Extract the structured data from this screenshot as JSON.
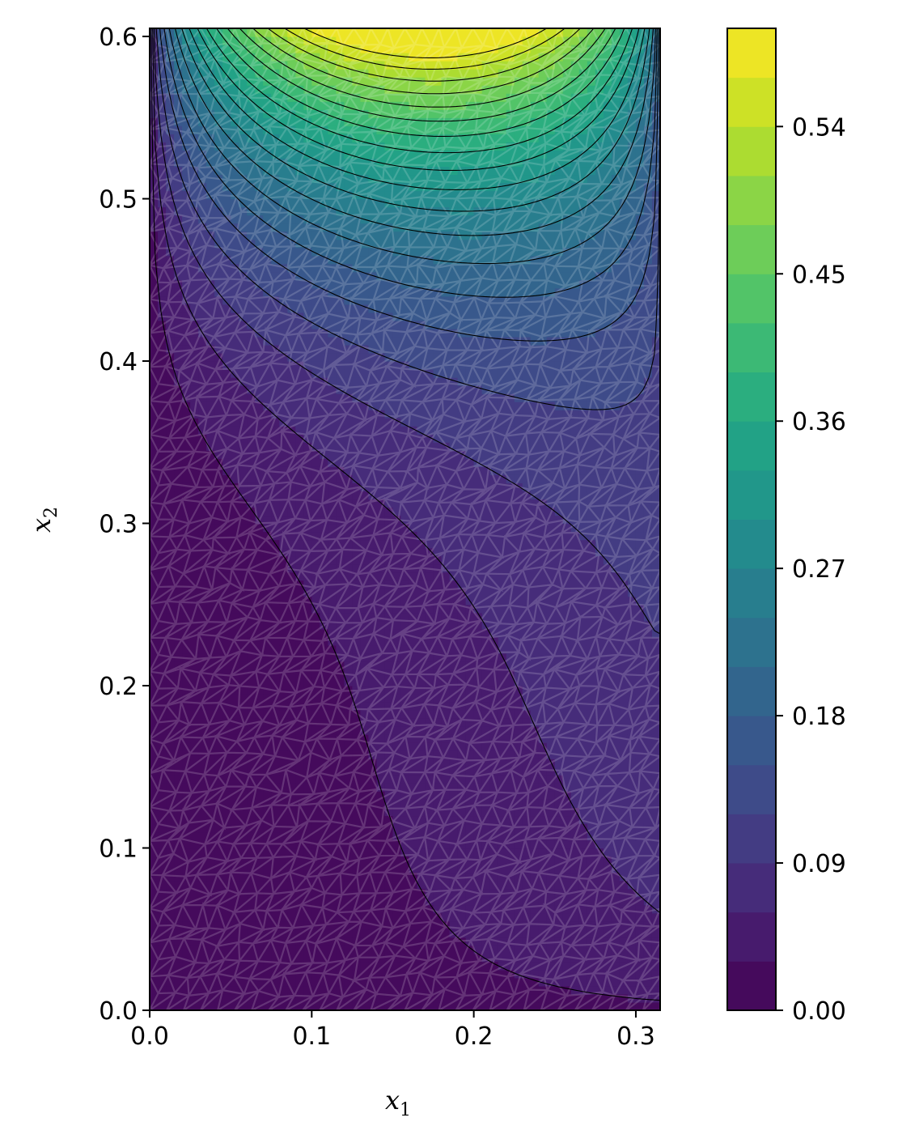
{
  "chart_data": {
    "type": "heatmap",
    "title": "",
    "xlabel": "x",
    "xlabel_sub": "1",
    "ylabel": "x",
    "ylabel_sub": "2",
    "xlim": [
      0.0,
      0.315
    ],
    "ylim": [
      0.0,
      0.605
    ],
    "x_ticks": [
      {
        "value": 0.0,
        "label": "0.0"
      },
      {
        "value": 0.1,
        "label": "0.1"
      },
      {
        "value": 0.2,
        "label": "0.2"
      },
      {
        "value": 0.3,
        "label": "0.3"
      }
    ],
    "y_ticks": [
      {
        "value": 0.0,
        "label": "0.0"
      },
      {
        "value": 0.1,
        "label": "0.1"
      },
      {
        "value": 0.2,
        "label": "0.2"
      },
      {
        "value": 0.3,
        "label": "0.3"
      },
      {
        "value": 0.4,
        "label": "0.4"
      },
      {
        "value": 0.5,
        "label": "0.5"
      },
      {
        "value": 0.6,
        "label": "0.6"
      }
    ],
    "colorbar": {
      "colormap": "viridis",
      "range": [
        0.0,
        0.6
      ],
      "levels": 20,
      "ticks": [
        {
          "value": 0.0,
          "label": "0.00"
        },
        {
          "value": 0.09,
          "label": "0.09"
        },
        {
          "value": 0.18,
          "label": "0.18"
        },
        {
          "value": 0.27,
          "label": "0.27"
        },
        {
          "value": 0.36,
          "label": "0.36"
        },
        {
          "value": 0.45,
          "label": "0.45"
        },
        {
          "value": 0.54,
          "label": "0.54"
        }
      ]
    },
    "mesh_overlay": "triangular",
    "contour_lines": 20
  },
  "colors": {
    "viridis": [
      "#440154",
      "#482475",
      "#414487",
      "#355f8d",
      "#2a788e",
      "#21918c",
      "#22a884",
      "#44bf70",
      "#7ad151",
      "#bddf26",
      "#fde725"
    ],
    "contour": "#000000",
    "mesh": "#ffffff"
  }
}
